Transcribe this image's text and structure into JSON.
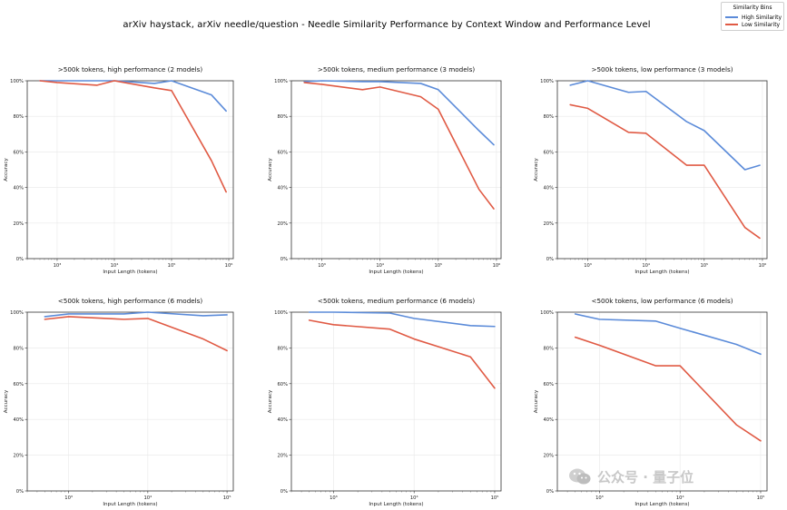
{
  "figure": {
    "title": "arXiv haystack, arXiv needle/question - Needle Similarity Performance by Context Window and Performance Level"
  },
  "legend": {
    "title": "Similarity Bins",
    "items": [
      {
        "label": "High Similarity",
        "color": "#5b8bd9"
      },
      {
        "label": "Low Similarity",
        "color": "#e05a44"
      }
    ]
  },
  "watermark": {
    "text": "公众号 · 量子位"
  },
  "colors": {
    "high": "#5b8bd9",
    "low": "#e05a44"
  },
  "chart_data": [
    {
      "type": "line",
      "title": ">500k tokens, high performance (2 models)",
      "xlabel": "Input Length (tokens)",
      "ylabel": "Accuracy",
      "xscale": "log",
      "xlim": [
        300,
        1200000
      ],
      "ylim": [
        0,
        1
      ],
      "xticks": [
        {
          "v": 1000,
          "label": "10³"
        },
        {
          "v": 10000,
          "label": "10⁴"
        },
        {
          "v": 100000,
          "label": "10⁵"
        },
        {
          "v": 1000000,
          "label": "10⁶"
        }
      ],
      "yticks": [
        "0%",
        "20%",
        "40%",
        "60%",
        "80%",
        "100%"
      ],
      "grid": true,
      "series": [
        {
          "name": "High Similarity",
          "x": [
            500,
            1000,
            5000,
            10000,
            50000,
            100000,
            500000,
            900000
          ],
          "y": [
            1.0,
            1.0,
            1.0,
            1.0,
            0.985,
            1.0,
            0.92,
            0.83
          ]
        },
        {
          "name": "Low Similarity",
          "x": [
            500,
            1000,
            5000,
            10000,
            50000,
            100000,
            500000,
            900000
          ],
          "y": [
            1.0,
            0.99,
            0.975,
            1.0,
            0.96,
            0.945,
            0.55,
            0.375
          ]
        }
      ]
    },
    {
      "type": "line",
      "title": ">500k tokens, medium performance (3 models)",
      "xlabel": "Input Length (tokens)",
      "ylabel": "Accuracy",
      "xscale": "log",
      "xlim": [
        300,
        1200000
      ],
      "ylim": [
        0,
        1
      ],
      "xticks": [
        {
          "v": 1000,
          "label": "10³"
        },
        {
          "v": 10000,
          "label": "10⁴"
        },
        {
          "v": 100000,
          "label": "10⁵"
        },
        {
          "v": 1000000,
          "label": "10⁶"
        }
      ],
      "yticks": [
        "0%",
        "20%",
        "40%",
        "60%",
        "80%",
        "100%"
      ],
      "grid": true,
      "series": [
        {
          "name": "High Similarity",
          "x": [
            500,
            1000,
            5000,
            10000,
            50000,
            100000,
            500000,
            900000
          ],
          "y": [
            0.995,
            1.0,
            0.995,
            0.995,
            0.985,
            0.95,
            0.72,
            0.64
          ]
        },
        {
          "name": "Low Similarity",
          "x": [
            500,
            1000,
            5000,
            10000,
            50000,
            100000,
            500000,
            900000
          ],
          "y": [
            0.99,
            0.98,
            0.95,
            0.965,
            0.91,
            0.84,
            0.39,
            0.28
          ]
        }
      ]
    },
    {
      "type": "line",
      "title": ">500k tokens, low performance (3 models)",
      "xlabel": "Input Length (tokens)",
      "ylabel": "Accuracy",
      "xscale": "log",
      "xlim": [
        300,
        1200000
      ],
      "ylim": [
        0,
        1
      ],
      "xticks": [
        {
          "v": 1000,
          "label": "10³"
        },
        {
          "v": 10000,
          "label": "10⁴"
        },
        {
          "v": 100000,
          "label": "10⁵"
        },
        {
          "v": 1000000,
          "label": "10⁶"
        }
      ],
      "yticks": [
        "0%",
        "20%",
        "40%",
        "60%",
        "80%",
        "100%"
      ],
      "grid": true,
      "series": [
        {
          "name": "High Similarity",
          "x": [
            500,
            1000,
            5000,
            10000,
            50000,
            100000,
            500000,
            900000
          ],
          "y": [
            0.975,
            1.0,
            0.935,
            0.94,
            0.77,
            0.72,
            0.5,
            0.525
          ]
        },
        {
          "name": "Low Similarity",
          "x": [
            500,
            1000,
            5000,
            10000,
            50000,
            100000,
            500000,
            900000
          ],
          "y": [
            0.865,
            0.845,
            0.71,
            0.705,
            0.525,
            0.525,
            0.175,
            0.115
          ]
        }
      ]
    },
    {
      "type": "line",
      "title": "<500k tokens, high performance (6 models)",
      "xlabel": "Input Length (tokens)",
      "ylabel": "Accuracy",
      "xscale": "log",
      "xlim": [
        300,
        120000
      ],
      "ylim": [
        0,
        1
      ],
      "xticks": [
        {
          "v": 1000,
          "label": "10³"
        },
        {
          "v": 10000,
          "label": "10⁴"
        },
        {
          "v": 100000,
          "label": "10⁵"
        }
      ],
      "yticks": [
        "0%",
        "20%",
        "40%",
        "60%",
        "80%",
        "100%"
      ],
      "grid": true,
      "series": [
        {
          "name": "High Similarity",
          "x": [
            500,
            1000,
            5000,
            10000,
            50000,
            100000
          ],
          "y": [
            0.975,
            0.99,
            0.99,
            1.0,
            0.98,
            0.985
          ]
        },
        {
          "name": "Low Similarity",
          "x": [
            500,
            1000,
            5000,
            10000,
            50000,
            100000
          ],
          "y": [
            0.96,
            0.975,
            0.96,
            0.965,
            0.85,
            0.785
          ]
        }
      ]
    },
    {
      "type": "line",
      "title": "<500k tokens, medium performance (6 models)",
      "xlabel": "Input Length (tokens)",
      "ylabel": "Accuracy",
      "xscale": "log",
      "xlim": [
        300,
        120000
      ],
      "ylim": [
        0,
        1
      ],
      "xticks": [
        {
          "v": 1000,
          "label": "10³"
        },
        {
          "v": 10000,
          "label": "10⁴"
        },
        {
          "v": 100000,
          "label": "10⁵"
        }
      ],
      "yticks": [
        "0%",
        "20%",
        "40%",
        "60%",
        "80%",
        "100%"
      ],
      "grid": true,
      "series": [
        {
          "name": "High Similarity",
          "x": [
            500,
            1000,
            5000,
            10000,
            50000,
            100000
          ],
          "y": [
            1.0,
            1.0,
            0.995,
            0.965,
            0.925,
            0.92
          ]
        },
        {
          "name": "Low Similarity",
          "x": [
            500,
            1000,
            5000,
            10000,
            50000,
            100000
          ],
          "y": [
            0.955,
            0.93,
            0.905,
            0.85,
            0.75,
            0.575
          ]
        }
      ]
    },
    {
      "type": "line",
      "title": "<500k tokens, low performance (6 models)",
      "xlabel": "Input Length (tokens)",
      "ylabel": "Accuracy",
      "xscale": "log",
      "xlim": [
        300,
        120000
      ],
      "ylim": [
        0,
        1
      ],
      "xticks": [
        {
          "v": 1000,
          "label": "10³"
        },
        {
          "v": 10000,
          "label": "10⁴"
        },
        {
          "v": 100000,
          "label": "10⁵"
        }
      ],
      "yticks": [
        "0%",
        "20%",
        "40%",
        "60%",
        "80%",
        "100%"
      ],
      "grid": true,
      "series": [
        {
          "name": "High Similarity",
          "x": [
            500,
            1000,
            5000,
            10000,
            50000,
            100000
          ],
          "y": [
            0.99,
            0.96,
            0.95,
            0.91,
            0.82,
            0.765
          ]
        },
        {
          "name": "Low Similarity",
          "x": [
            500,
            1000,
            5000,
            10000,
            50000,
            100000
          ],
          "y": [
            0.86,
            0.815,
            0.7,
            0.7,
            0.37,
            0.28
          ]
        }
      ]
    }
  ]
}
